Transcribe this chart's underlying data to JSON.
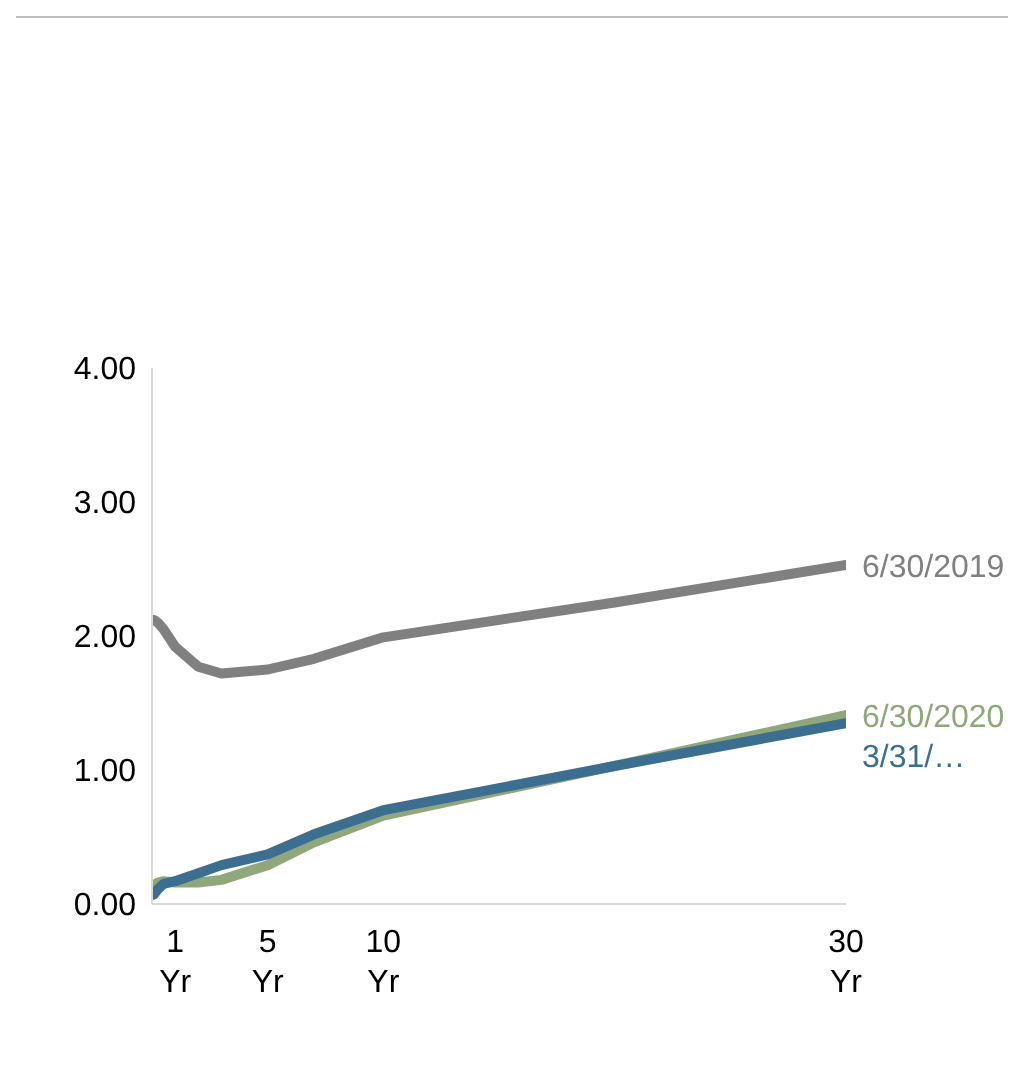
{
  "chart_data": {
    "type": "line",
    "x": [
      0.08,
      0.25,
      0.5,
      1,
      2,
      3,
      5,
      7,
      10,
      20,
      30
    ],
    "series": [
      {
        "name": "6/30/2019",
        "color": "#808080",
        "values": [
          2.12,
          2.1,
          2.05,
          1.92,
          1.77,
          1.72,
          1.75,
          1.83,
          1.99,
          2.25,
          2.53
        ]
      },
      {
        "name": "6/30/2020",
        "color": "#8fa77a",
        "values": [
          0.14,
          0.16,
          0.17,
          0.16,
          0.16,
          0.18,
          0.29,
          0.46,
          0.66,
          1.03,
          1.41
        ]
      },
      {
        "name": "3/31/…",
        "color": "#3b6e8f",
        "values": [
          0.07,
          0.11,
          0.15,
          0.17,
          0.23,
          0.29,
          0.37,
          0.52,
          0.7,
          1.03,
          1.35
        ]
      }
    ],
    "xlim": [
      0,
      30
    ],
    "xticks": [
      {
        "value": 1,
        "label": "1 Yr"
      },
      {
        "value": 5,
        "label": "5 Yr"
      },
      {
        "value": 10,
        "label": "10 Yr"
      },
      {
        "value": 30,
        "label": "30 Yr"
      }
    ],
    "ylim": [
      0,
      4
    ],
    "yticks": [
      {
        "value": 0,
        "label": "0.00"
      },
      {
        "value": 1,
        "label": "1.00"
      },
      {
        "value": 2,
        "label": "2.00"
      },
      {
        "value": 3,
        "label": "3.00"
      },
      {
        "value": 4,
        "label": "4.00"
      }
    ],
    "grid": false,
    "legend": false,
    "marker": "none",
    "line_style": "solid"
  }
}
